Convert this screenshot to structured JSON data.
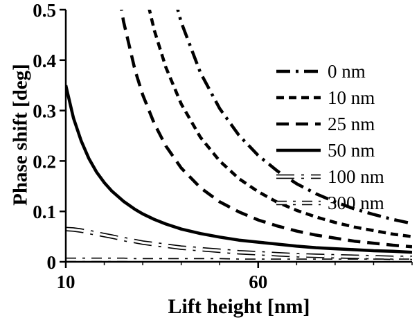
{
  "figure": {
    "background": "#ffffff",
    "line_color": "#000000"
  },
  "axes": {
    "x_label": "Lift height [nm]",
    "y_label": "Phase shift [deg]"
  },
  "chart_data": {
    "type": "line",
    "title": "",
    "xlabel": "Lift height [nm]",
    "ylabel": "Phase shift [deg]",
    "xlim": [
      10,
      100
    ],
    "ylim": [
      0,
      0.5
    ],
    "grid": false,
    "legend_position": "inside-right",
    "x_tick_values": [
      10,
      60
    ],
    "x_tick_labels": [
      "10",
      "60"
    ],
    "x_minor_ticks": [
      20,
      30,
      40,
      50,
      70,
      80,
      90,
      100
    ],
    "y_tick_values": [
      0,
      0.1,
      0.2,
      0.3,
      0.4,
      0.5
    ],
    "y_tick_labels": [
      "0",
      "0.1",
      "0.2",
      "0.3",
      "0.4",
      "0.5"
    ],
    "x": [
      10,
      12,
      14,
      16,
      18,
      20,
      22,
      25,
      28,
      30,
      33,
      36,
      40,
      45,
      50,
      55,
      60,
      65,
      70,
      75,
      80,
      85,
      90,
      95,
      100
    ],
    "series": [
      {
        "name": "0 nm",
        "style": "dash-dot",
        "hollow": false,
        "values": [
          7.6,
          5.28,
          3.88,
          2.97,
          2.35,
          1.9,
          1.57,
          1.22,
          0.97,
          0.844,
          0.698,
          0.586,
          0.475,
          0.375,
          0.304,
          0.251,
          0.211,
          0.18,
          0.155,
          0.135,
          0.119,
          0.105,
          0.094,
          0.084,
          0.076
        ]
      },
      {
        "name": "10 nm",
        "style": "dash-short",
        "hollow": false,
        "values": [
          5.0,
          3.47,
          2.55,
          1.95,
          1.54,
          1.25,
          1.03,
          0.8,
          0.638,
          0.556,
          0.459,
          0.386,
          0.313,
          0.247,
          0.2,
          0.165,
          0.139,
          0.118,
          0.102,
          0.089,
          0.078,
          0.069,
          0.062,
          0.055,
          0.05
        ]
      },
      {
        "name": "25 nm",
        "style": "dash-long",
        "hollow": false,
        "values": [
          2.98,
          2.07,
          1.52,
          1.16,
          0.92,
          0.745,
          0.616,
          0.477,
          0.38,
          0.331,
          0.274,
          0.23,
          0.186,
          0.147,
          0.119,
          0.099,
          0.083,
          0.071,
          0.061,
          0.053,
          0.047,
          0.041,
          0.037,
          0.033,
          0.03
        ]
      },
      {
        "name": "50 nm",
        "style": "solid",
        "hollow": false,
        "values": [
          0.35,
          0.285,
          0.24,
          0.205,
          0.178,
          0.157,
          0.14,
          0.12,
          0.104,
          0.095,
          0.084,
          0.075,
          0.065,
          0.056,
          0.049,
          0.043,
          0.039,
          0.035,
          0.031,
          0.028,
          0.026,
          0.024,
          0.022,
          0.021,
          0.019
        ]
      },
      {
        "name": "100 nm",
        "style": "hollow-dash-dot-long",
        "hollow": true,
        "values": [
          0.065,
          0.064,
          0.062,
          0.059,
          0.056,
          0.053,
          0.05,
          0.045,
          0.041,
          0.038,
          0.035,
          0.032,
          0.028,
          0.025,
          0.022,
          0.019,
          0.017,
          0.015,
          0.013,
          0.012,
          0.011,
          0.01,
          0.009,
          0.008,
          0.008
        ]
      },
      {
        "name": "300 nm",
        "style": "hollow-dash-dot",
        "hollow": true,
        "values": [
          0.004,
          0.004,
          0.004,
          0.004,
          0.004,
          0.004,
          0.004,
          0.004,
          0.003,
          0.003,
          0.003,
          0.003,
          0.003,
          0.003,
          0.003,
          0.002,
          0.002,
          0.002,
          0.002,
          0.002,
          0.002,
          0.002,
          0.002,
          0.002,
          0.002
        ]
      }
    ]
  }
}
